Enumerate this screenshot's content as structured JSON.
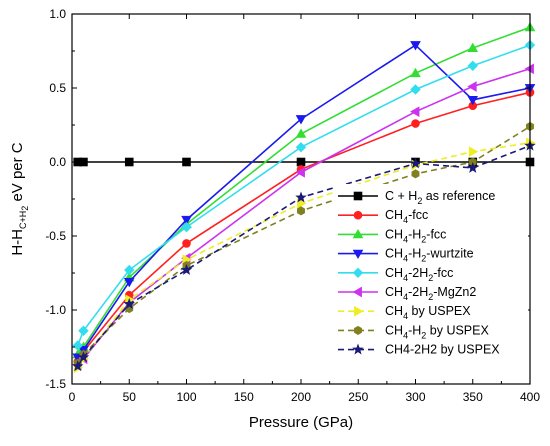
{
  "chart_data": {
    "type": "line",
    "xlabel": "Pressure (GPa)",
    "ylabel": {
      "base": "H-H",
      "sub": "C+H",
      "subsub": "2",
      "rest": " eV per C"
    },
    "xlim": [
      0,
      400
    ],
    "ylim": [
      -1.5,
      1.0
    ],
    "xticks": [
      0,
      50,
      100,
      150,
      200,
      250,
      300,
      350,
      400
    ],
    "yticks": [
      -1.5,
      -1.0,
      -0.5,
      0.0,
      0.5,
      1.0
    ],
    "xtick_labels": [
      "0",
      "50",
      "100",
      "150",
      "200",
      "250",
      "300",
      "350",
      "400"
    ],
    "ytick_labels": [
      "-1.5",
      "-1.0",
      "-0.5",
      "0.0",
      "0.5",
      "1.0"
    ],
    "grid": false,
    "legend_position": "bottom-right",
    "series": [
      {
        "name": "C + H2 as reference",
        "label_parts": [
          {
            "t": "C + H"
          },
          {
            "t": "2",
            "sub": true
          },
          {
            "t": " as reference"
          }
        ],
        "color": "#000000",
        "marker": "square",
        "dash": false,
        "x": [
          5,
          10,
          50,
          100,
          200,
          300,
          350,
          400
        ],
        "y": [
          0,
          0,
          0,
          0,
          0,
          0,
          0,
          0
        ]
      },
      {
        "name": "CH4-fcc",
        "label_parts": [
          {
            "t": "CH"
          },
          {
            "t": "4",
            "sub": true
          },
          {
            "t": "-fcc"
          }
        ],
        "color": "#ff2020",
        "marker": "circle",
        "dash": false,
        "x": [
          5,
          10,
          50,
          100,
          200,
          300,
          350,
          400
        ],
        "y": [
          -1.35,
          -1.28,
          -0.9,
          -0.55,
          -0.05,
          0.26,
          0.38,
          0.47
        ]
      },
      {
        "name": "CH4-H2-fcc",
        "label_parts": [
          {
            "t": "CH"
          },
          {
            "t": "4",
            "sub": true
          },
          {
            "t": "-H"
          },
          {
            "t": "2",
            "sub": true
          },
          {
            "t": "-fcc"
          }
        ],
        "color": "#33dd33",
        "marker": "triangle-up",
        "dash": false,
        "x": [
          5,
          10,
          50,
          100,
          200,
          300,
          350,
          400
        ],
        "y": [
          -1.3,
          -1.25,
          -0.78,
          -0.42,
          0.19,
          0.6,
          0.77,
          0.91
        ]
      },
      {
        "name": "CH4-H2-wurtzite",
        "label_parts": [
          {
            "t": "CH"
          },
          {
            "t": "4",
            "sub": true
          },
          {
            "t": "-H"
          },
          {
            "t": "2",
            "sub": true
          },
          {
            "t": "-wurtzite"
          }
        ],
        "color": "#1a1aee",
        "marker": "triangle-down",
        "dash": false,
        "x": [
          5,
          10,
          50,
          100,
          200,
          300,
          350,
          400
        ],
        "y": [
          -1.32,
          -1.27,
          -0.81,
          -0.39,
          0.29,
          0.79,
          0.42,
          0.5
        ]
      },
      {
        "name": "CH4-2H2-fcc",
        "label_parts": [
          {
            "t": "CH"
          },
          {
            "t": "4",
            "sub": true
          },
          {
            "t": "-2H"
          },
          {
            "t": "2",
            "sub": true
          },
          {
            "t": "-fcc"
          }
        ],
        "color": "#33ddee",
        "marker": "diamond",
        "dash": false,
        "x": [
          5,
          10,
          50,
          100,
          200,
          300,
          350,
          400
        ],
        "y": [
          -1.24,
          -1.14,
          -0.73,
          -0.44,
          0.1,
          0.49,
          0.65,
          0.79
        ]
      },
      {
        "name": "CH4-2H2-MgZn2",
        "label_parts": [
          {
            "t": "CH"
          },
          {
            "t": "4",
            "sub": true
          },
          {
            "t": "-2H"
          },
          {
            "t": "2",
            "sub": true
          },
          {
            "t": "-MgZn2"
          }
        ],
        "color": "#cc33ee",
        "marker": "triangle-left",
        "dash": false,
        "x": [
          5,
          10,
          50,
          100,
          200,
          300,
          350,
          400
        ],
        "y": [
          -1.37,
          -1.33,
          -0.95,
          -0.65,
          -0.07,
          0.34,
          0.51,
          0.63
        ]
      },
      {
        "name": "CH4 by USPEX",
        "label_parts": [
          {
            "t": "CH"
          },
          {
            "t": "4",
            "sub": true
          },
          {
            "t": " by USPEX"
          }
        ],
        "color": "#eeee22",
        "marker": "triangle-right",
        "dash": true,
        "x": [
          5,
          10,
          50,
          100,
          200,
          300,
          350,
          400
        ],
        "y": [
          -1.39,
          -1.33,
          -0.93,
          -0.66,
          -0.28,
          -0.02,
          0.07,
          0.13
        ]
      },
      {
        "name": "CH4-H2 by USPEX",
        "label_parts": [
          {
            "t": "CH"
          },
          {
            "t": "4",
            "sub": true
          },
          {
            "t": "-H"
          },
          {
            "t": "2",
            "sub": true
          },
          {
            "t": " by USPEX"
          }
        ],
        "color": "#808020",
        "marker": "hexagon",
        "dash": true,
        "x": [
          5,
          10,
          50,
          100,
          200,
          300,
          350,
          400
        ],
        "y": [
          -1.36,
          -1.3,
          -0.99,
          -0.7,
          -0.33,
          -0.08,
          0.0,
          0.24
        ]
      },
      {
        "name": "CH4-2H2 by USPEX",
        "label_parts": [
          {
            "t": "CH4-2H2 by USPEX"
          }
        ],
        "color": "#1a1a77",
        "marker": "star",
        "dash": true,
        "x": [
          5,
          10,
          50,
          100,
          200,
          300,
          350,
          400
        ],
        "y": [
          -1.38,
          -1.32,
          -0.96,
          -0.73,
          -0.24,
          -0.01,
          -0.04,
          0.11
        ]
      }
    ]
  }
}
